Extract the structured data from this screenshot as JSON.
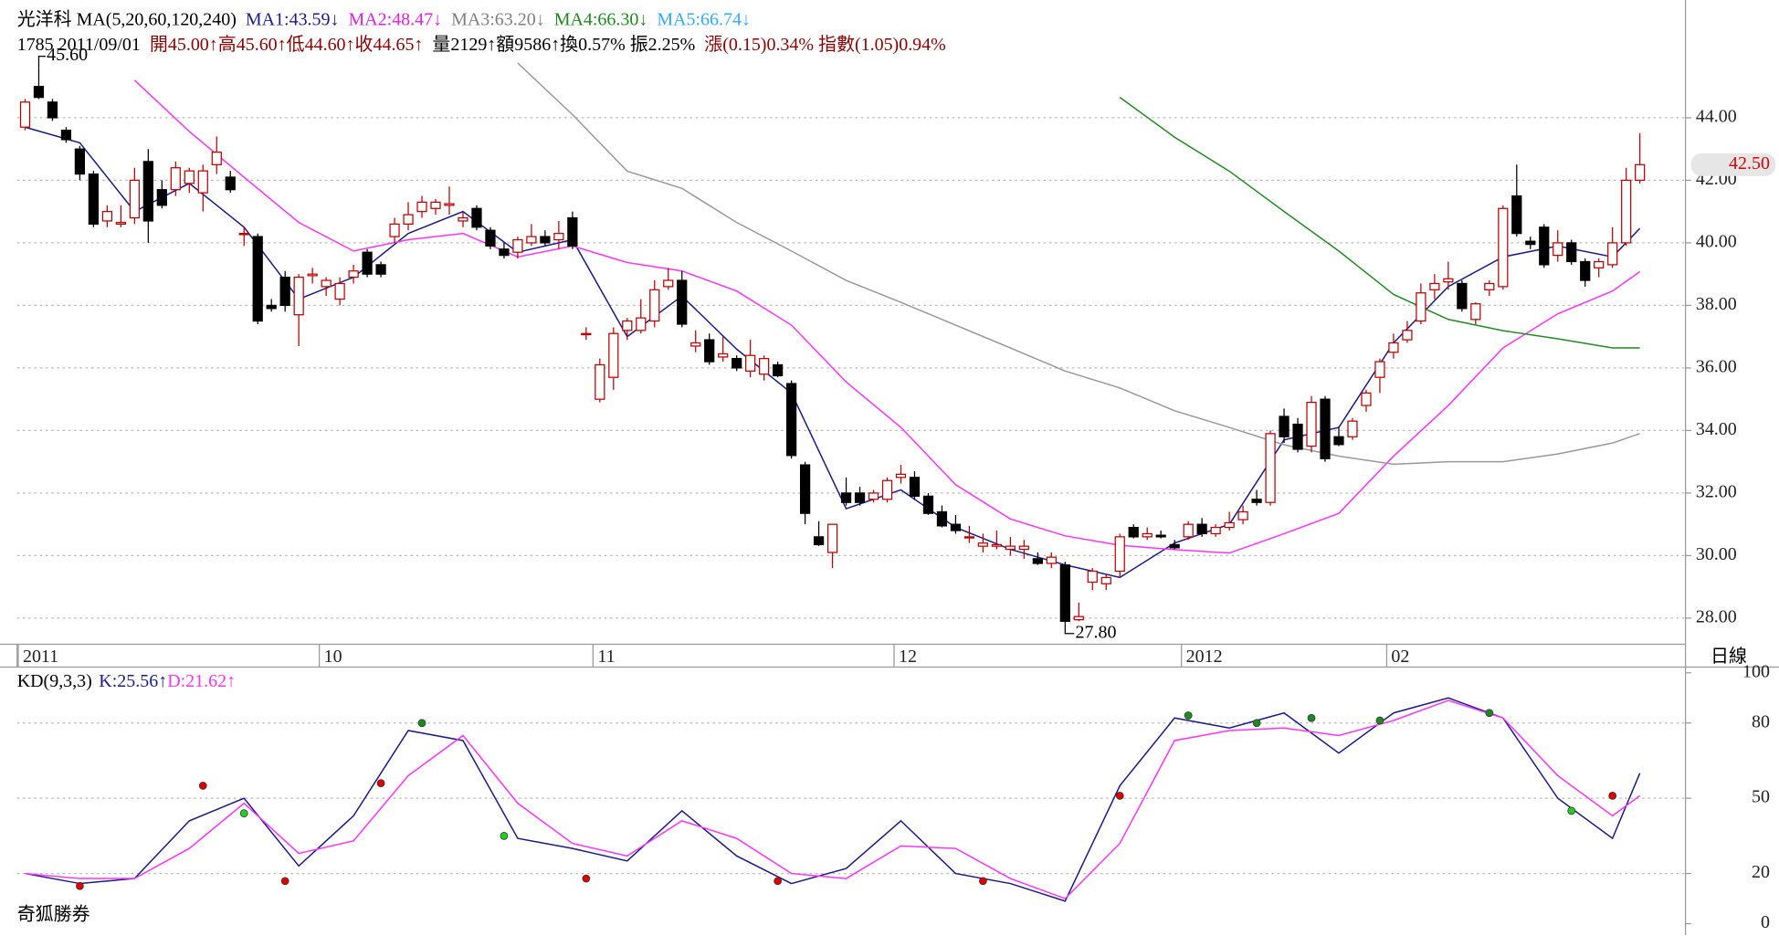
{
  "header": {
    "line1": [
      {
        "text": "光洋科 MA(5,20,60,120,240)",
        "color": "#000000"
      },
      {
        "text": "MA1:43.59↓",
        "color": "#1a1a8c"
      },
      {
        "text": "MA2:48.47↓",
        "color": "#e020e0"
      },
      {
        "text": "MA3:63.20↓",
        "color": "#808080"
      },
      {
        "text": "MA4:66.30↓",
        "color": "#1e8a1e"
      },
      {
        "text": "MA5:66.74↓",
        "color": "#33aaff"
      }
    ],
    "line2": [
      {
        "text": "1785 2011/09/01",
        "color": "#000000"
      },
      {
        "text": "開45.00↑高45.60↑低44.60↑收44.65↑",
        "color": "#8b0000"
      },
      {
        "text": "量2129↑額9586↑換0.57% 振2.25%",
        "color": "#000000"
      },
      {
        "text": "漲(0.15)0.34% 指數(1.05)0.94%",
        "color": "#8b0000"
      }
    ]
  },
  "chart_data": {
    "type": "candlestick",
    "categories": [
      "2011",
      null,
      null,
      null,
      null,
      null,
      null,
      null,
      null,
      null,
      null,
      null,
      null,
      null,
      null,
      null,
      null,
      null,
      null,
      null,
      null,
      null,
      "10",
      null,
      null,
      null,
      null,
      null,
      null,
      null,
      null,
      null,
      null,
      null,
      null,
      null,
      null,
      null,
      null,
      null,
      null,
      null,
      "11",
      null,
      null,
      null,
      null,
      null,
      null,
      null,
      null,
      null,
      null,
      null,
      null,
      null,
      null,
      null,
      null,
      null,
      null,
      null,
      null,
      null,
      "12",
      null,
      null,
      null,
      null,
      null,
      null,
      null,
      null,
      null,
      null,
      null,
      null,
      null,
      null,
      null,
      null,
      null,
      null,
      null,
      null,
      "2012",
      null,
      null,
      null,
      null,
      null,
      null,
      null,
      null,
      null,
      null,
      null,
      null,
      null,
      null,
      "02",
      null,
      null,
      null,
      null,
      null,
      null,
      null,
      null,
      null,
      null,
      null,
      null,
      null,
      null,
      null,
      null,
      null,
      null
    ],
    "open": [
      43.7,
      45.0,
      44.5,
      43.6,
      43.0,
      42.2,
      40.7,
      40.6,
      40.8,
      42.6,
      41.7,
      41.7,
      41.9,
      41.6,
      42.5,
      42.1,
      40.3,
      40.2,
      38.0,
      38.9,
      37.7,
      38.95,
      38.6,
      38.2,
      38.9,
      39.7,
      39.3,
      40.2,
      40.6,
      41.0,
      41.1,
      41.2,
      40.7,
      41.1,
      40.4,
      39.8,
      39.7,
      40.0,
      40.2,
      40.1,
      40.8,
      37.1,
      35.0,
      35.7,
      37.2,
      37.2,
      37.5,
      38.6,
      38.8,
      36.7,
      36.9,
      36.35,
      36.3,
      35.9,
      35.8,
      36.1,
      35.5,
      32.9,
      30.6,
      30.1,
      32.0,
      32.0,
      31.8,
      31.8,
      32.5,
      32.5,
      31.9,
      31.4,
      31.0,
      30.6,
      30.3,
      30.3,
      30.2,
      30.2,
      29.9,
      29.75,
      29.7,
      27.95,
      29.15,
      29.1,
      29.5,
      30.9,
      30.6,
      30.65,
      30.35,
      30.6,
      31.0,
      30.7,
      30.9,
      31.15,
      31.8,
      31.7,
      34.45,
      34.2,
      33.5,
      35.0,
      33.8,
      33.8,
      34.8,
      35.7,
      36.5,
      36.9,
      37.5,
      38.5,
      38.75,
      38.7,
      37.55,
      38.5,
      38.6,
      41.5,
      40.05,
      40.5,
      39.6,
      40.0,
      39.4,
      39.2,
      39.3,
      40.0,
      42.0
    ],
    "high": [
      44.6,
      45.6,
      44.6,
      43.7,
      43.1,
      42.3,
      41.2,
      41.2,
      42.4,
      43.0,
      42.0,
      42.6,
      42.4,
      42.5,
      43.4,
      42.3,
      40.5,
      40.3,
      38.2,
      39.1,
      39.0,
      39.2,
      38.9,
      38.9,
      39.3,
      39.8,
      39.4,
      40.8,
      41.3,
      41.5,
      41.4,
      41.8,
      41.0,
      41.2,
      40.5,
      40.0,
      40.2,
      40.6,
      40.4,
      40.7,
      41.0,
      37.3,
      36.3,
      37.3,
      37.6,
      38.2,
      38.8,
      39.2,
      39.1,
      37.2,
      37.1,
      37.0,
      36.4,
      36.9,
      36.4,
      36.2,
      35.6,
      33.0,
      31.1,
      31.0,
      32.5,
      32.2,
      32.1,
      32.5,
      32.9,
      32.7,
      32.0,
      31.6,
      31.3,
      30.95,
      30.7,
      30.8,
      30.6,
      30.5,
      30.1,
      30.1,
      29.8,
      28.5,
      29.6,
      29.4,
      30.7,
      31.0,
      30.9,
      30.8,
      30.5,
      31.1,
      31.2,
      31.0,
      31.4,
      31.6,
      32.1,
      34.0,
      34.7,
      34.4,
      35.1,
      35.1,
      34.1,
      34.4,
      35.3,
      36.3,
      37.1,
      37.5,
      38.7,
      39.0,
      39.4,
      38.8,
      38.1,
      38.8,
      41.2,
      42.5,
      40.2,
      40.6,
      40.4,
      40.1,
      39.5,
      39.5,
      40.5,
      42.4,
      43.5
    ],
    "low": [
      43.6,
      44.6,
      43.9,
      43.2,
      42.0,
      40.5,
      40.5,
      40.5,
      40.6,
      40.0,
      41.1,
      41.5,
      41.6,
      41.0,
      42.2,
      41.6,
      39.9,
      37.4,
      37.8,
      37.8,
      36.7,
      38.7,
      38.3,
      38.0,
      38.7,
      38.9,
      38.9,
      40.0,
      40.4,
      40.8,
      40.9,
      40.9,
      40.5,
      40.4,
      39.8,
      39.5,
      39.5,
      39.9,
      39.9,
      39.8,
      39.8,
      36.9,
      34.9,
      35.3,
      36.9,
      37.1,
      37.3,
      38.5,
      37.3,
      36.5,
      36.1,
      36.2,
      35.9,
      35.7,
      35.6,
      35.7,
      33.1,
      31.0,
      30.3,
      29.6,
      31.6,
      31.6,
      31.7,
      31.7,
      32.3,
      31.8,
      31.3,
      30.9,
      30.7,
      30.4,
      30.1,
      30.2,
      30.0,
      29.9,
      29.7,
      29.6,
      27.8,
      27.9,
      28.9,
      28.9,
      29.3,
      30.55,
      30.5,
      30.55,
      30.2,
      30.5,
      30.6,
      30.6,
      30.8,
      31.0,
      31.6,
      31.6,
      33.6,
      33.3,
      33.3,
      33.0,
      33.5,
      33.7,
      34.6,
      35.2,
      36.3,
      36.8,
      37.4,
      38.2,
      38.5,
      37.8,
      37.4,
      38.3,
      38.5,
      40.2,
      39.8,
      39.2,
      39.4,
      39.3,
      38.6,
      38.9,
      39.2,
      39.9,
      41.9
    ],
    "close": [
      44.5,
      44.65,
      44.0,
      43.3,
      42.2,
      40.6,
      41.0,
      40.65,
      42.0,
      40.7,
      41.2,
      42.4,
      42.3,
      42.3,
      42.9,
      41.7,
      40.3,
      37.5,
      37.9,
      38.0,
      38.9,
      39.0,
      38.8,
      38.7,
      39.1,
      39.0,
      39.0,
      40.6,
      40.9,
      41.3,
      41.3,
      41.25,
      40.8,
      40.5,
      39.9,
      39.6,
      40.1,
      40.2,
      40.0,
      40.3,
      39.9,
      37.1,
      36.1,
      37.1,
      37.5,
      37.6,
      38.5,
      38.8,
      37.4,
      36.8,
      36.2,
      36.45,
      36.0,
      36.4,
      36.3,
      35.75,
      33.2,
      31.35,
      30.35,
      31.0,
      31.7,
      31.7,
      32.0,
      32.4,
      32.6,
      31.9,
      31.35,
      30.95,
      30.8,
      30.6,
      30.4,
      30.35,
      30.3,
      30.3,
      29.75,
      29.95,
      27.9,
      28.05,
      29.5,
      29.3,
      30.6,
      30.6,
      30.7,
      30.6,
      30.25,
      31.0,
      30.7,
      30.9,
      31.05,
      31.4,
      31.7,
      33.9,
      33.8,
      33.4,
      34.9,
      33.1,
      33.55,
      34.3,
      35.2,
      36.2,
      36.8,
      37.2,
      38.4,
      38.7,
      38.85,
      37.9,
      38.05,
      38.7,
      41.1,
      40.3,
      39.95,
      39.3,
      40.0,
      39.4,
      38.8,
      39.4,
      40.0,
      42.0,
      42.5
    ],
    "up_color": "#c00000",
    "down_color": "#000000",
    "ylim": [
      27.2,
      47.4
    ],
    "yticks": [
      {
        "value": 28,
        "label": "28.00"
      },
      {
        "value": 30,
        "label": "30.00"
      },
      {
        "value": 32,
        "label": "32.00"
      },
      {
        "value": 34,
        "label": "34.00"
      },
      {
        "value": 36,
        "label": "36.00"
      },
      {
        "value": 38,
        "label": "38.00"
      },
      {
        "value": 40,
        "label": "40.00"
      },
      {
        "value": 42,
        "label": "42.00"
      },
      {
        "value": 44,
        "label": "44.00"
      }
    ],
    "grid": true,
    "high_label": "45.60",
    "low_label": "27.80",
    "last_label": "42.50",
    "x_axis_label": "日線",
    "ma": {
      "x": [
        0,
        4,
        8,
        12,
        16,
        20,
        24,
        28,
        32,
        36,
        40,
        44,
        48,
        52,
        56,
        60,
        64,
        68,
        72,
        76,
        80,
        84,
        88,
        92,
        96,
        100,
        104,
        108,
        112,
        116,
        118
      ],
      "series": [
        {
          "color": "#1a1a8c",
          "values": [
            43.7,
            43.2,
            41.0,
            41.9,
            40.5,
            38.2,
            38.9,
            40.3,
            41.0,
            39.7,
            40.1,
            37.0,
            38.3,
            36.6,
            35.2,
            31.5,
            32.1,
            30.9,
            30.2,
            29.7,
            29.3,
            30.4,
            31.0,
            33.7,
            34.1,
            36.8,
            38.6,
            39.55,
            39.9,
            39.55,
            40.46
          ]
        },
        {
          "color": "#ff33ff",
          "values": [
            null,
            null,
            45.2,
            43.56,
            42.1,
            40.65,
            39.74,
            40.1,
            40.3,
            39.55,
            39.9,
            39.37,
            39.1,
            38.46,
            37.37,
            35.55,
            34.1,
            32.27,
            31.17,
            30.63,
            30.33,
            30.19,
            30.08,
            30.7,
            31.35,
            33.18,
            34.8,
            36.64,
            37.73,
            38.46,
            39.08
          ]
        },
        {
          "color": "#999999",
          "values": [
            null,
            null,
            null,
            null,
            null,
            null,
            null,
            null,
            null,
            45.75,
            44.1,
            42.29,
            41.74,
            40.65,
            39.74,
            38.8,
            38.1,
            37.37,
            36.64,
            35.9,
            35.36,
            34.63,
            34.1,
            33.54,
            33.18,
            32.92,
            33.0,
            33.0,
            33.25,
            33.6,
            33.9
          ]
        },
        {
          "color": "#228b22",
          "values": [
            null,
            null,
            null,
            null,
            null,
            null,
            null,
            null,
            null,
            null,
            null,
            null,
            null,
            null,
            null,
            null,
            null,
            null,
            null,
            null,
            44.65,
            43.38,
            42.29,
            41.0,
            39.74,
            38.35,
            37.55,
            37.19,
            36.93,
            36.64,
            36.64
          ]
        }
      ]
    },
    "kd": {
      "type": "line",
      "title": "KD(9,3,3)",
      "k_label": "K:25.56↑",
      "d_label": "D:21.62↑",
      "ylim": [
        0,
        100
      ],
      "yticks": [
        0,
        20,
        50,
        80,
        100
      ],
      "grid": true,
      "x": [
        0,
        4,
        8,
        12,
        16,
        20,
        24,
        28,
        32,
        36,
        40,
        44,
        48,
        52,
        56,
        60,
        64,
        68,
        72,
        76,
        80,
        84,
        88,
        92,
        96,
        100,
        104,
        108,
        112,
        116,
        118
      ],
      "series": [
        {
          "color": "#1a1a8c",
          "values": [
            20,
            16,
            18,
            41,
            50,
            23,
            43,
            77,
            73,
            34,
            30,
            25,
            45,
            27,
            16,
            22,
            41,
            20,
            16,
            9,
            55,
            82,
            78,
            84,
            68,
            84,
            90,
            82,
            50,
            34,
            60
          ]
        },
        {
          "color": "#ff33ff",
          "values": [
            20,
            18,
            18,
            30,
            48,
            28,
            33,
            59,
            75,
            48,
            32,
            27,
            41,
            34,
            20,
            18,
            31,
            30,
            18,
            10,
            32,
            73,
            77,
            78,
            75,
            81,
            89,
            82,
            59,
            43,
            51
          ]
        }
      ],
      "markers": [
        {
          "x": 4,
          "value": 15,
          "color": "#dd0000"
        },
        {
          "x": 19,
          "value": 17,
          "color": "#dd0000"
        },
        {
          "x": 41,
          "value": 18,
          "color": "#dd0000"
        },
        {
          "x": 55,
          "value": 17,
          "color": "#dd0000"
        },
        {
          "x": 70,
          "value": 17,
          "color": "#dd0000"
        },
        {
          "x": 13,
          "value": 55,
          "color": "#dd0000"
        },
        {
          "x": 26,
          "value": 56,
          "color": "#dd0000"
        },
        {
          "x": 80,
          "value": 51,
          "color": "#dd0000"
        },
        {
          "x": 116,
          "value": 51,
          "color": "#dd0000"
        },
        {
          "x": 29,
          "value": 80,
          "color": "#1e8a1e"
        },
        {
          "x": 85,
          "value": 83,
          "color": "#1e8a1e"
        },
        {
          "x": 90,
          "value": 80,
          "color": "#1e8a1e"
        },
        {
          "x": 94,
          "value": 82,
          "color": "#1e8a1e"
        },
        {
          "x": 99,
          "value": 81,
          "color": "#1e8a1e"
        },
        {
          "x": 107,
          "value": 84,
          "color": "#1e8a1e"
        },
        {
          "x": 16,
          "value": 44,
          "color": "#22cc22"
        },
        {
          "x": 35,
          "value": 35,
          "color": "#22cc22"
        },
        {
          "x": 113,
          "value": 45,
          "color": "#22cc22"
        }
      ]
    }
  },
  "footer": "奇狐勝券"
}
